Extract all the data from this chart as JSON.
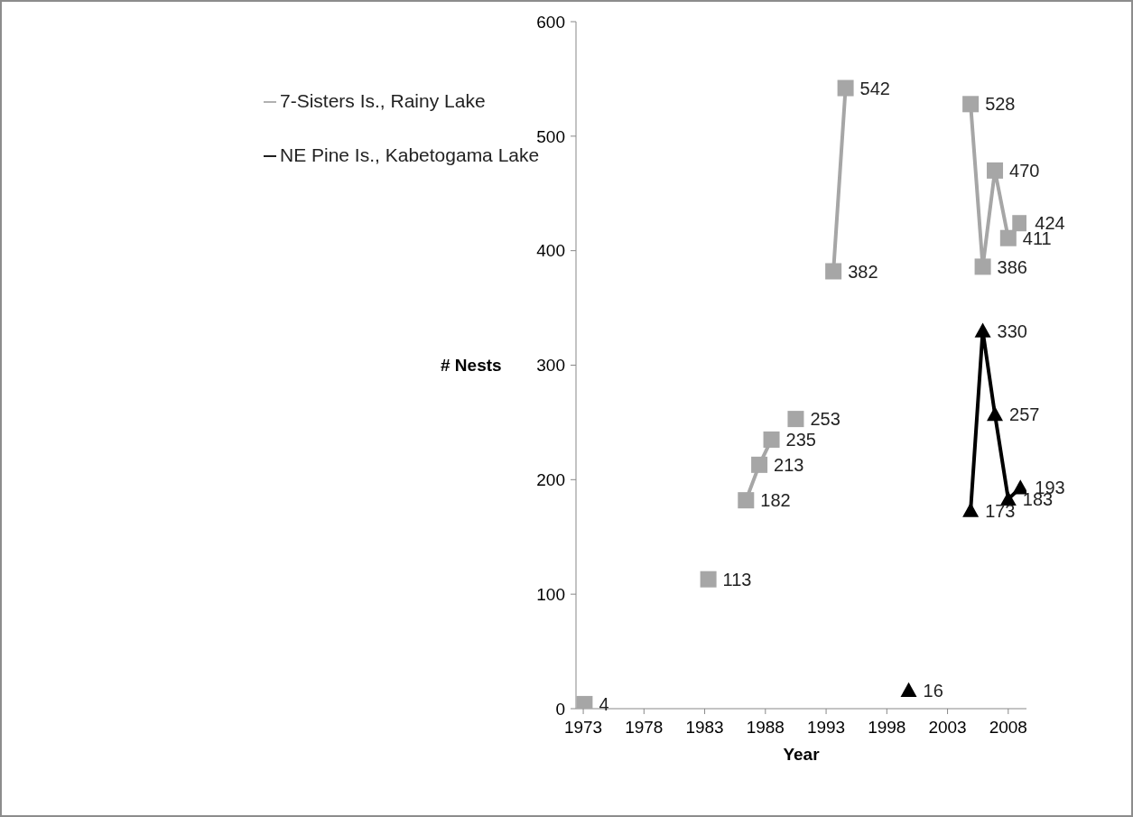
{
  "chart_data": {
    "type": "line",
    "xlabel": "Year",
    "ylabel": "# Nests",
    "xlim": [
      1972.4,
      2009.5
    ],
    "xticks": [
      1973,
      1978,
      1983,
      1988,
      1993,
      1998,
      2003,
      2008
    ],
    "ylim": [
      0,
      600
    ],
    "yticks": [
      0,
      100,
      200,
      300,
      400,
      500,
      600
    ],
    "grid": false,
    "legend": "top left",
    "data_labels": true,
    "series": [
      {
        "name": "NE Pine Is., Kabetogama Lake",
        "color": "#000000",
        "marker": "triangle",
        "x": [
          1999.8,
          2002,
          2004.9,
          2005.9,
          2006.9,
          2008.0,
          2009.0
        ],
        "values": [
          16,
          null,
          173,
          330,
          257,
          183,
          193
        ]
      },
      {
        "name": "7-Sisters Is., Rainy Lake",
        "color": "#a6a6a6",
        "marker": "square",
        "x": [
          1973.1,
          1978,
          1983.3,
          1985,
          1986.4,
          1987.5,
          1988.5,
          1989.5,
          1990.5,
          1992,
          1993.6,
          1994.6,
          2000,
          2004.9,
          2005.9,
          2006.9,
          2008.0,
          2009.0
        ],
        "values": [
          4,
          null,
          113,
          null,
          182,
          213,
          235,
          null,
          253,
          null,
          382,
          542,
          null,
          528,
          386,
          470,
          411,
          424
        ]
      }
    ]
  }
}
